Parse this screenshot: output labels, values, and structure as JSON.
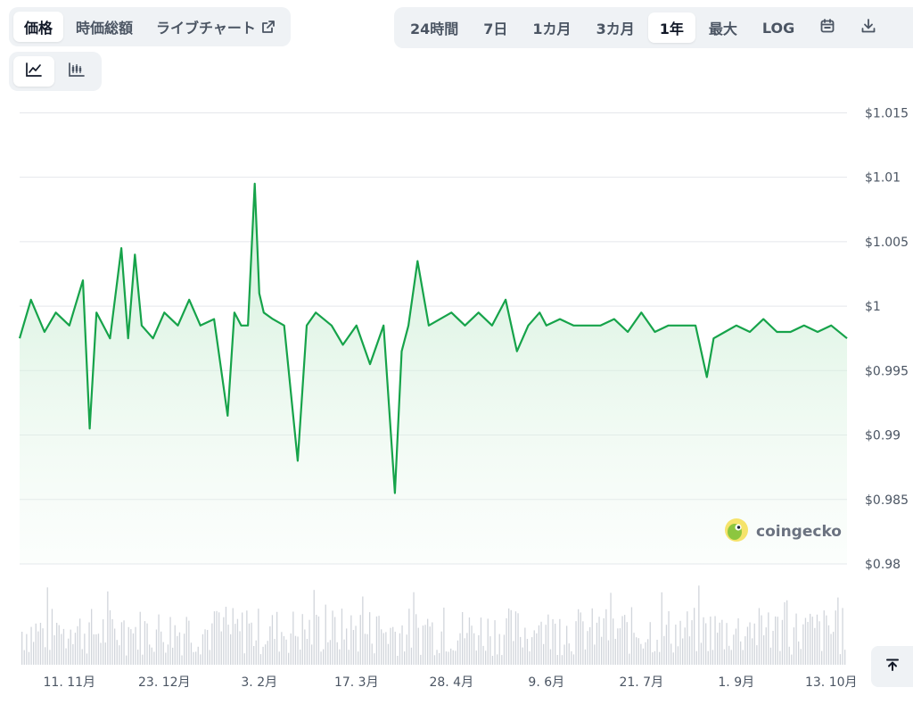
{
  "view_tabs": [
    {
      "label": "価格",
      "active": true
    },
    {
      "label": "時価総額",
      "active": false
    },
    {
      "label": "ライブチャート",
      "active": false,
      "icon": "external-link-icon"
    }
  ],
  "range_tabs": [
    {
      "label": "24時間",
      "active": false
    },
    {
      "label": "7日",
      "active": false
    },
    {
      "label": "1カ月",
      "active": false
    },
    {
      "label": "3カ月",
      "active": false
    },
    {
      "label": "1年",
      "active": true
    },
    {
      "label": "最大",
      "active": false
    },
    {
      "label": "LOG",
      "active": false
    }
  ],
  "range_icons": [
    "calendar-icon",
    "download-icon"
  ],
  "style_tabs": [
    {
      "icon": "line-chart-icon",
      "active": true
    },
    {
      "icon": "candlestick-icon",
      "active": false
    }
  ],
  "watermark": {
    "text": "coingecko",
    "icon": "coingecko-logo-icon"
  },
  "scroll_top_icon": "arrow-up-to-top-icon",
  "colors": {
    "line": "#16a34a",
    "fill_top": "#c8edd2",
    "grid": "#e5e7eb",
    "volume": "#d1d5db"
  },
  "chart_data": {
    "type": "area",
    "x_start": "2023-10-20",
    "x_end": "2024-10-20",
    "ylim": [
      0.98,
      1.016
    ],
    "y_ticks": [
      {
        "value": 0.98,
        "label": "$0.98"
      },
      {
        "value": 0.985,
        "label": "$0.985"
      },
      {
        "value": 0.99,
        "label": "$0.99"
      },
      {
        "value": 0.995,
        "label": "$0.995"
      },
      {
        "value": 1.0,
        "label": "$1"
      },
      {
        "value": 1.005,
        "label": "$1.005"
      },
      {
        "value": 1.01,
        "label": "$1.01"
      },
      {
        "value": 1.015,
        "label": "$1.015"
      }
    ],
    "x_ticks": [
      {
        "date": "2023-11-11",
        "label": "11. 11月"
      },
      {
        "date": "2023-12-23",
        "label": "23. 12月"
      },
      {
        "date": "2024-02-03",
        "label": "3. 2月"
      },
      {
        "date": "2024-03-17",
        "label": "17. 3月"
      },
      {
        "date": "2024-04-28",
        "label": "28. 4月"
      },
      {
        "date": "2024-06-09",
        "label": "9. 6月"
      },
      {
        "date": "2024-07-21",
        "label": "21. 7月"
      },
      {
        "date": "2024-09-01",
        "label": "1. 9月"
      },
      {
        "date": "2024-10-13",
        "label": "13. 10月"
      }
    ],
    "grid": true,
    "legend": "none",
    "series": [
      {
        "x": [
          "2023-10-20",
          "2023-10-25",
          "2023-10-31",
          "2023-11-05",
          "2023-11-11",
          "2023-11-17",
          "2023-11-20",
          "2023-11-23",
          "2023-11-29",
          "2023-12-04",
          "2023-12-07",
          "2023-12-10",
          "2023-12-13",
          "2023-12-18",
          "2023-12-23",
          "2023-12-29",
          "2024-01-03",
          "2024-01-08",
          "2024-01-14",
          "2024-01-20",
          "2024-01-23",
          "2024-01-26",
          "2024-01-29",
          "2024-02-01",
          "2024-02-03",
          "2024-02-05",
          "2024-02-09",
          "2024-02-14",
          "2024-02-20",
          "2024-02-24",
          "2024-02-28",
          "2024-03-06",
          "2024-03-11",
          "2024-03-17",
          "2024-03-23",
          "2024-03-29",
          "2024-04-03",
          "2024-04-06",
          "2024-04-09",
          "2024-04-13",
          "2024-04-18",
          "2024-04-23",
          "2024-04-28",
          "2024-05-04",
          "2024-05-10",
          "2024-05-16",
          "2024-05-22",
          "2024-05-27",
          "2024-06-01",
          "2024-06-06",
          "2024-06-09",
          "2024-06-15",
          "2024-06-21",
          "2024-06-27",
          "2024-07-03",
          "2024-07-09",
          "2024-07-15",
          "2024-07-21",
          "2024-07-27",
          "2024-08-02",
          "2024-08-08",
          "2024-08-14",
          "2024-08-19",
          "2024-08-22",
          "2024-08-27",
          "2024-09-01",
          "2024-09-07",
          "2024-09-13",
          "2024-09-19",
          "2024-09-25",
          "2024-10-01",
          "2024-10-07",
          "2024-10-13",
          "2024-10-20"
        ],
        "y": [
          0.9975,
          1.0005,
          0.998,
          0.9995,
          0.9985,
          1.002,
          0.9905,
          0.9995,
          0.9975,
          1.0045,
          0.9975,
          1.004,
          0.9985,
          0.9975,
          0.9995,
          0.9985,
          1.0005,
          0.9985,
          0.999,
          0.9915,
          0.9995,
          0.9985,
          0.9985,
          1.0095,
          1.001,
          0.9995,
          0.999,
          0.9985,
          0.988,
          0.9985,
          0.9995,
          0.9985,
          0.997,
          0.9985,
          0.9955,
          0.9985,
          0.9855,
          0.9965,
          0.9985,
          1.0035,
          0.9985,
          0.999,
          0.9995,
          0.9985,
          0.9995,
          0.9985,
          1.0005,
          0.9965,
          0.9985,
          0.9995,
          0.9985,
          0.999,
          0.9985,
          0.9985,
          0.9985,
          0.999,
          0.998,
          0.9995,
          0.998,
          0.9985,
          0.9985,
          0.9985,
          0.9945,
          0.9975,
          0.998,
          0.9985,
          0.998,
          0.999,
          0.998,
          0.998,
          0.9985,
          0.998,
          0.9985,
          0.9975
        ]
      }
    ],
    "volume_shown": true
  }
}
